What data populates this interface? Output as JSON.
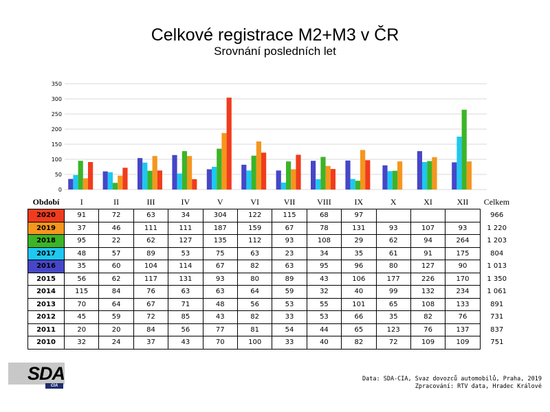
{
  "header": {
    "title": "Celkové registrace M2+M3 v ČR",
    "subtitle": "Srovnání posledních let"
  },
  "table": {
    "corner_label": "Období",
    "total_label": "Celkem"
  },
  "footer": {
    "logo_text": "SDA",
    "logo_subtext": "CIA",
    "source_line1": "Data: SDA-CIA, Svaz dovozců automobilů, Praha, 2019",
    "source_line2": "Zpracování: RTV data, Hradec Králové"
  },
  "chart_data": {
    "type": "bar",
    "categories": [
      "I",
      "II",
      "III",
      "IV",
      "V",
      "VI",
      "VII",
      "VIII",
      "IX",
      "X",
      "XI",
      "XII"
    ],
    "ylim": [
      0,
      350
    ],
    "yticks": [
      0,
      50,
      100,
      150,
      200,
      250,
      300,
      350
    ],
    "grid": true,
    "plotted_order": [
      "2016",
      "2017",
      "2018",
      "2019",
      "2020"
    ],
    "series": [
      {
        "name": "2020",
        "color": "#f03c1e",
        "values": [
          91,
          72,
          63,
          34,
          304,
          122,
          115,
          68,
          97,
          null,
          null,
          null
        ],
        "total": "966"
      },
      {
        "name": "2019",
        "color": "#f5961e",
        "values": [
          37,
          46,
          111,
          111,
          187,
          159,
          67,
          78,
          131,
          93,
          107,
          93
        ],
        "total": "1 220"
      },
      {
        "name": "2018",
        "color": "#3cb428",
        "values": [
          95,
          22,
          62,
          127,
          135,
          112,
          93,
          108,
          29,
          62,
          94,
          264
        ],
        "total": "1 203"
      },
      {
        "name": "2017",
        "color": "#1ec8f0",
        "values": [
          48,
          57,
          89,
          53,
          75,
          63,
          23,
          34,
          35,
          61,
          91,
          175
        ],
        "total": "804"
      },
      {
        "name": "2016",
        "color": "#4646c8",
        "values": [
          35,
          60,
          104,
          114,
          67,
          82,
          63,
          95,
          96,
          80,
          127,
          90
        ],
        "total": "1 013"
      },
      {
        "name": "2015",
        "color": null,
        "values": [
          56,
          62,
          117,
          131,
          93,
          80,
          89,
          43,
          106,
          177,
          226,
          170
        ],
        "total": "1 350"
      },
      {
        "name": "2014",
        "color": null,
        "values": [
          115,
          84,
          76,
          63,
          63,
          64,
          59,
          32,
          40,
          99,
          132,
          234
        ],
        "total": "1 061"
      },
      {
        "name": "2013",
        "color": null,
        "values": [
          70,
          64,
          67,
          71,
          48,
          56,
          53,
          55,
          101,
          65,
          108,
          133
        ],
        "total": "891"
      },
      {
        "name": "2012",
        "color": null,
        "values": [
          45,
          59,
          72,
          85,
          43,
          82,
          33,
          53,
          66,
          35,
          82,
          76
        ],
        "total": "731"
      },
      {
        "name": "2011",
        "color": null,
        "values": [
          20,
          20,
          84,
          56,
          77,
          81,
          54,
          44,
          65,
          123,
          76,
          137
        ],
        "total": "837"
      },
      {
        "name": "2010",
        "color": null,
        "values": [
          32,
          24,
          37,
          43,
          70,
          100,
          33,
          40,
          82,
          72,
          109,
          109
        ],
        "total": "751"
      }
    ]
  }
}
